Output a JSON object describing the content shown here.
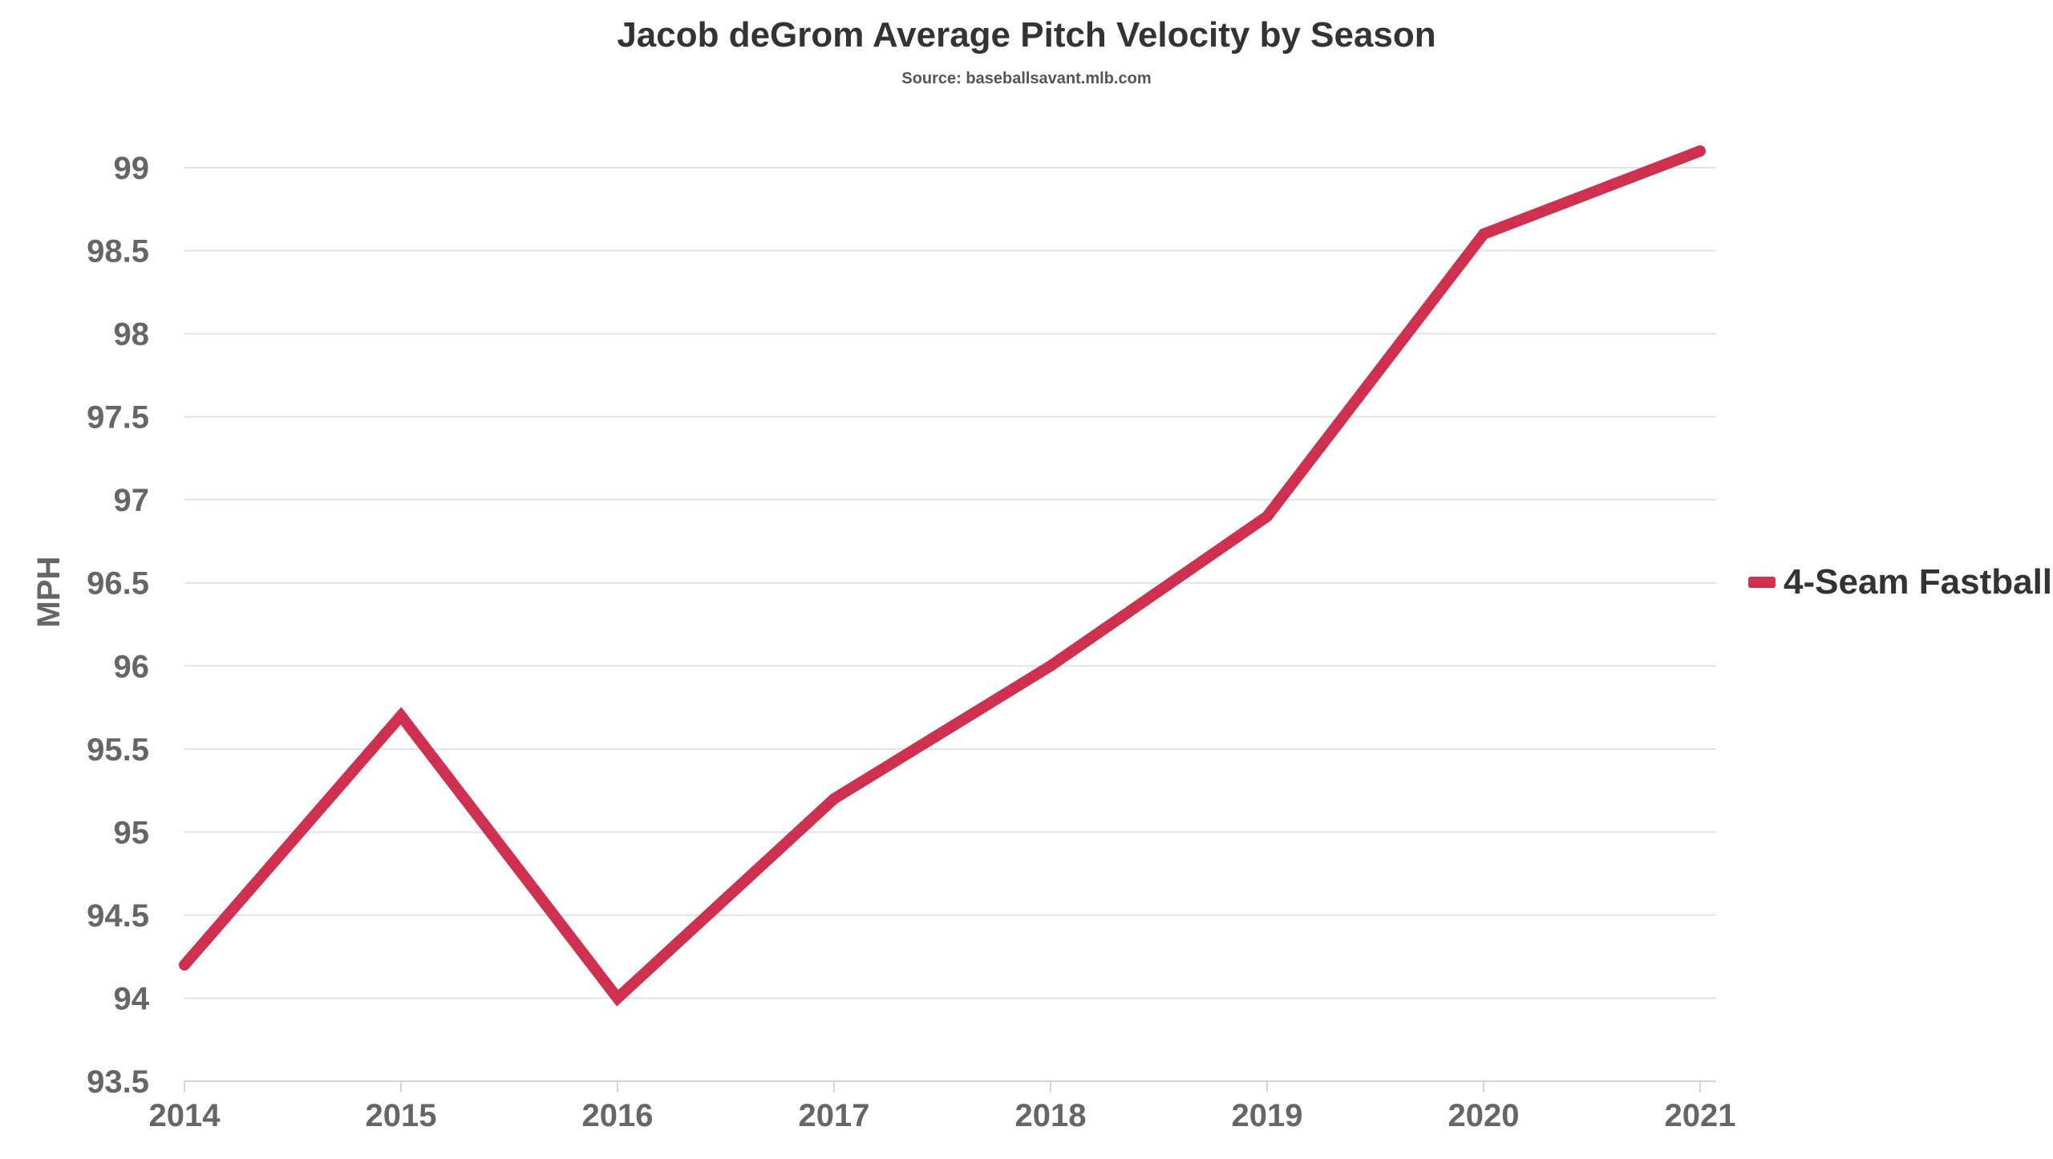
{
  "chart_data": {
    "type": "line",
    "title": "Jacob deGrom Average Pitch Velocity by Season",
    "subtitle": "Source: baseballsavant.mlb.com",
    "xlabel": "",
    "ylabel": "MPH",
    "categories": [
      "2014",
      "2015",
      "2016",
      "2017",
      "2018",
      "2019",
      "2020",
      "2021"
    ],
    "series": [
      {
        "name": "4-Seam Fastball",
        "color": "#d0304f",
        "values": [
          94.2,
          95.7,
          94.0,
          95.2,
          96.0,
          96.9,
          98.6,
          99.1
        ]
      }
    ],
    "ylim": [
      93.5,
      99
    ],
    "yticks": [
      "93.5",
      "94",
      "94.5",
      "95",
      "95.5",
      "96",
      "96.5",
      "97",
      "97.5",
      "98",
      "98.5",
      "99"
    ],
    "grid": true,
    "legend_position": "right"
  }
}
